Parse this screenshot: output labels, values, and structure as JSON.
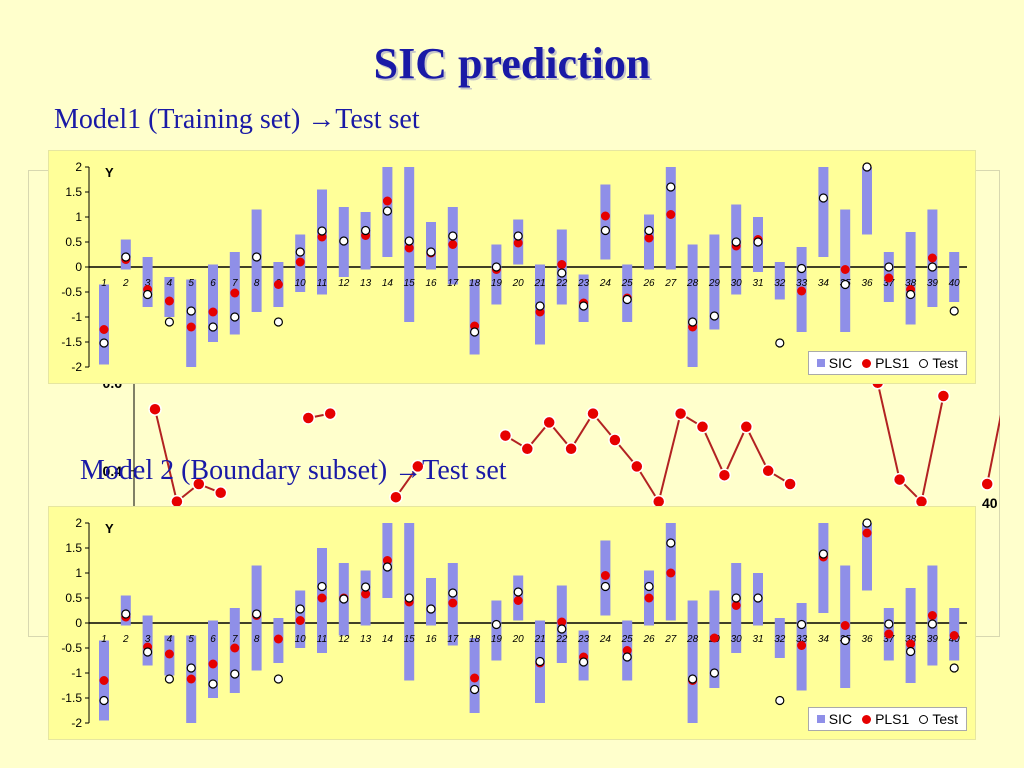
{
  "slide": {
    "title": "SIC prediction",
    "subtitle1": "Model1 (Training set) →Test set",
    "subtitle2": "Model 2 (Boundary subset) →Test set"
  },
  "colors": {
    "bar": "#8f8fe8",
    "pls": "#e60000",
    "test": "#ffffff",
    "axis": "#000000",
    "title": "#1a1aa6",
    "line": "#b22222"
  },
  "chart_data": [
    {
      "type": "scatter",
      "ylabel": "Y",
      "ylim": [
        -2,
        2
      ],
      "yticks": [
        "2",
        "1.5",
        "1",
        "0.5",
        "0",
        "-0.5",
        "-1",
        "-1.5",
        "-2"
      ],
      "categories": [
        "1",
        "2",
        "3",
        "4",
        "5",
        "6",
        "7",
        "8",
        "9",
        "10",
        "11",
        "12",
        "13",
        "14",
        "15",
        "16",
        "17",
        "18",
        "19",
        "20",
        "21",
        "22",
        "23",
        "24",
        "25",
        "26",
        "27",
        "28",
        "29",
        "30",
        "31",
        "32",
        "33",
        "34",
        "35",
        "36",
        "37",
        "38",
        "39",
        "40"
      ],
      "legend": [
        "SIC",
        "PLS1",
        "Test"
      ],
      "series": [
        {
          "name": "SIC",
          "kind": "range",
          "low": [
            -1.95,
            -0.05,
            -0.8,
            -1.0,
            -2.0,
            -1.5,
            -1.35,
            -0.9,
            -0.8,
            -0.5,
            -0.55,
            -0.2,
            -0.05,
            0.2,
            -1.1,
            -0.05,
            -0.35,
            -1.75,
            -0.75,
            0.05,
            -1.55,
            -0.75,
            -1.1,
            0.15,
            -1.1,
            -0.05,
            -0.05,
            -2.0,
            -1.25,
            -0.55,
            -0.1,
            -0.65,
            -1.3,
            0.2,
            -1.3,
            0.65,
            -0.7,
            -1.15,
            -0.8,
            -0.7
          ],
          "high": [
            -0.35,
            0.55,
            0.2,
            -0.2,
            -0.25,
            0.05,
            0.3,
            1.15,
            0.1,
            0.65,
            1.55,
            1.2,
            1.1,
            2.0,
            2.0,
            0.9,
            1.2,
            -0.25,
            0.45,
            0.95,
            0.05,
            0.75,
            -0.15,
            1.65,
            0.05,
            1.05,
            2.0,
            0.45,
            0.65,
            1.25,
            1.0,
            0.1,
            0.4,
            2.0,
            1.15,
            2.0,
            0.3,
            0.7,
            1.15,
            0.3
          ]
        },
        {
          "name": "PLS1",
          "kind": "point",
          "values": [
            -1.25,
            0.15,
            -0.45,
            -0.68,
            -1.2,
            -0.9,
            -0.52,
            null,
            -0.35,
            0.1,
            0.6,
            null,
            0.63,
            1.32,
            0.38,
            0.28,
            0.45,
            -1.18,
            -0.05,
            0.48,
            -0.9,
            0.05,
            -0.72,
            1.02,
            -0.62,
            0.58,
            1.05,
            -1.2,
            null,
            0.42,
            0.55,
            null,
            -0.48,
            null,
            -0.05,
            2.0,
            -0.22,
            -0.45,
            0.18,
            null
          ]
        },
        {
          "name": "Test",
          "kind": "point",
          "values": [
            -1.52,
            0.2,
            -0.55,
            -1.1,
            -0.88,
            -1.2,
            -1.0,
            0.2,
            -1.1,
            0.3,
            0.72,
            0.52,
            0.73,
            1.12,
            0.52,
            0.3,
            0.62,
            -1.3,
            0.0,
            0.62,
            -0.78,
            -0.12,
            -0.78,
            0.73,
            -0.65,
            0.73,
            1.6,
            -1.1,
            -0.98,
            0.5,
            0.5,
            -1.52,
            -0.03,
            1.38,
            -0.35,
            2.0,
            0.0,
            -0.55,
            0.0,
            -0.88
          ]
        }
      ]
    },
    {
      "type": "line",
      "yticks": [
        "0.6",
        "0.4"
      ],
      "ylim": [
        0.32,
        0.62
      ],
      "x_end_label": "40",
      "values": [
        0.54,
        0.33,
        0.37,
        0.35,
        null,
        null,
        null,
        0.52,
        0.53,
        null,
        null,
        0.34,
        0.41,
        null,
        null,
        null,
        0.48,
        0.45,
        0.51,
        0.45,
        0.53,
        0.47,
        0.41,
        0.33,
        0.53,
        0.5,
        0.39,
        0.5,
        0.4,
        0.37,
        null,
        null,
        null,
        0.6,
        0.38,
        0.33,
        0.57,
        null,
        0.37,
        0.62,
        0.37
      ]
    },
    {
      "type": "scatter",
      "ylabel": "Y",
      "ylim": [
        -2,
        2
      ],
      "yticks": [
        "2",
        "1.5",
        "1",
        "0.5",
        "0",
        "-0.5",
        "-1",
        "-1.5",
        "-2"
      ],
      "categories": [
        "1",
        "2",
        "3",
        "4",
        "5",
        "6",
        "7",
        "8",
        "9",
        "10",
        "11",
        "12",
        "13",
        "14",
        "15",
        "16",
        "17",
        "18",
        "19",
        "20",
        "21",
        "22",
        "23",
        "24",
        "25",
        "26",
        "27",
        "28",
        "29",
        "30",
        "31",
        "32",
        "33",
        "34",
        "35",
        "36",
        "37",
        "38",
        "39",
        "40"
      ],
      "legend": [
        "SIC",
        "PLS1",
        "Test"
      ],
      "series": [
        {
          "name": "SIC",
          "kind": "range",
          "low": [
            -1.95,
            -0.05,
            -0.85,
            -1.05,
            -2.0,
            -1.5,
            -1.4,
            -0.95,
            -0.8,
            -0.5,
            -0.6,
            -0.25,
            -0.05,
            0.5,
            -1.15,
            -0.05,
            -0.45,
            -1.8,
            -0.75,
            0.05,
            -1.6,
            -0.8,
            -1.15,
            0.15,
            -1.15,
            -0.05,
            0.05,
            -2.0,
            -1.3,
            -0.6,
            -0.05,
            -0.7,
            -1.35,
            0.2,
            -1.3,
            0.65,
            -0.75,
            -1.2,
            -0.85,
            -0.75
          ],
          "high": [
            -0.35,
            0.55,
            0.15,
            -0.25,
            -0.25,
            0.05,
            0.3,
            1.15,
            0.1,
            0.65,
            1.5,
            1.2,
            1.05,
            2.0,
            2.0,
            0.9,
            1.2,
            -0.3,
            0.45,
            0.95,
            0.05,
            0.75,
            -0.15,
            1.65,
            0.05,
            1.05,
            2.0,
            0.45,
            0.65,
            1.2,
            1.0,
            0.1,
            0.4,
            2.0,
            1.15,
            2.0,
            0.3,
            0.7,
            1.15,
            0.3
          ]
        },
        {
          "name": "PLS1",
          "kind": "point",
          "values": [
            -1.15,
            0.12,
            -0.48,
            -0.62,
            -1.12,
            -0.82,
            -0.5,
            0.15,
            -0.32,
            0.05,
            0.5,
            0.5,
            0.58,
            1.25,
            0.42,
            0.28,
            0.4,
            -1.1,
            null,
            0.45,
            -0.8,
            0.02,
            -0.68,
            0.95,
            -0.55,
            0.5,
            1.0,
            -1.15,
            -0.3,
            0.35,
            null,
            null,
            -0.45,
            1.32,
            -0.05,
            1.8,
            -0.22,
            -0.42,
            0.15,
            -0.25
          ]
        },
        {
          "name": "Test",
          "kind": "point",
          "values": [
            -1.55,
            0.18,
            -0.58,
            -1.12,
            -0.9,
            -1.22,
            -1.02,
            0.18,
            -1.12,
            0.28,
            0.73,
            0.48,
            0.72,
            1.12,
            0.5,
            0.28,
            0.6,
            -1.33,
            -0.03,
            0.62,
            -0.77,
            -0.12,
            -0.78,
            0.73,
            -0.68,
            0.73,
            1.6,
            -1.12,
            -1.0,
            0.5,
            0.5,
            -1.55,
            -0.03,
            1.38,
            -0.35,
            2.0,
            -0.02,
            -0.57,
            -0.02,
            -0.9
          ]
        }
      ]
    }
  ]
}
